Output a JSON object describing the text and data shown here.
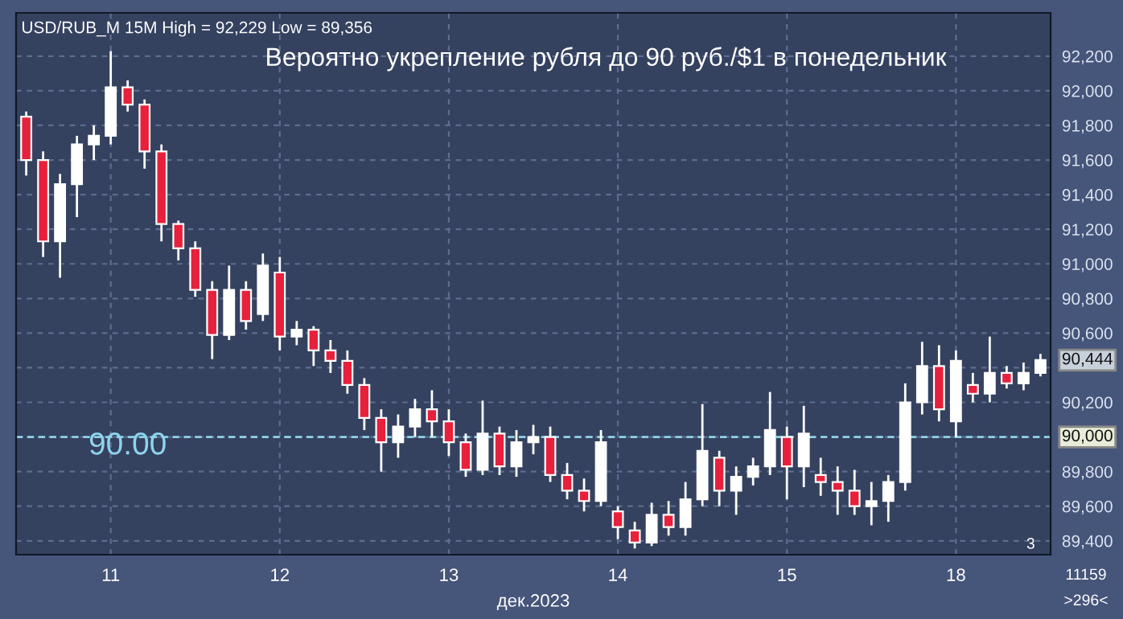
{
  "chart_data": {
    "type": "candlestick",
    "title": "Вероятно укрепление рубля до 90 руб./$1 в понедельник",
    "subtitle": "USD/RUB_M 15M High = 92,229 Low = 89,356",
    "xlabel": "дек.2023",
    "categories": [
      null,
      null,
      null,
      null,
      null,
      "11",
      null,
      null,
      null,
      null,
      null,
      null,
      null,
      null,
      null,
      "12",
      null,
      null,
      null,
      null,
      null,
      null,
      null,
      null,
      null,
      "13",
      null,
      null,
      null,
      null,
      null,
      null,
      null,
      null,
      null,
      "14",
      null,
      null,
      null,
      null,
      null,
      null,
      null,
      null,
      null,
      "15",
      null,
      null,
      null,
      null,
      null,
      null,
      null,
      null,
      null,
      "18",
      null,
      null,
      null,
      null,
      null
    ],
    "ohlc": [
      [
        91850,
        91880,
        91510,
        91600
      ],
      [
        91600,
        91650,
        91040,
        91130
      ],
      [
        91130,
        91520,
        90920,
        91460
      ],
      [
        91460,
        91740,
        91270,
        91690
      ],
      [
        91690,
        91800,
        91600,
        91740
      ],
      [
        91740,
        92229,
        91690,
        92020
      ],
      [
        92020,
        92060,
        91880,
        91920
      ],
      [
        91920,
        91950,
        91550,
        91650
      ],
      [
        91650,
        91690,
        91130,
        91230
      ],
      [
        91230,
        91250,
        91020,
        91090
      ],
      [
        91090,
        91130,
        90810,
        90850
      ],
      [
        90850,
        90900,
        90450,
        90590
      ],
      [
        90590,
        90990,
        90560,
        90850
      ],
      [
        90850,
        90900,
        90620,
        90670
      ],
      [
        90710,
        91060,
        90670,
        90990
      ],
      [
        90950,
        91040,
        90500,
        90580
      ],
      [
        90580,
        90670,
        90530,
        90620
      ],
      [
        90620,
        90640,
        90410,
        90500
      ],
      [
        90500,
        90560,
        90370,
        90440
      ],
      [
        90440,
        90500,
        90250,
        90300
      ],
      [
        90300,
        90340,
        90040,
        90110
      ],
      [
        90110,
        90160,
        89800,
        89970
      ],
      [
        89970,
        90130,
        89880,
        90060
      ],
      [
        90060,
        90220,
        90000,
        90160
      ],
      [
        90160,
        90270,
        90000,
        90090
      ],
      [
        90090,
        90160,
        89890,
        89970
      ],
      [
        89970,
        90020,
        89770,
        89810
      ],
      [
        89810,
        90210,
        89780,
        90020
      ],
      [
        90020,
        90060,
        89780,
        89830
      ],
      [
        89830,
        90040,
        89770,
        89970
      ],
      [
        89970,
        90070,
        89900,
        90000
      ],
      [
        90000,
        90060,
        89740,
        89780
      ],
      [
        89780,
        89850,
        89640,
        89690
      ],
      [
        89690,
        89760,
        89570,
        89630
      ],
      [
        89630,
        90040,
        89600,
        89970
      ],
      [
        89570,
        89600,
        89410,
        89480
      ],
      [
        89460,
        89510,
        89356,
        89390
      ],
      [
        89390,
        89620,
        89370,
        89550
      ],
      [
        89550,
        89630,
        89430,
        89480
      ],
      [
        89480,
        89740,
        89430,
        89640
      ],
      [
        89640,
        90190,
        89600,
        89920
      ],
      [
        89880,
        89920,
        89600,
        89690
      ],
      [
        89690,
        89830,
        89550,
        89770
      ],
      [
        89770,
        89880,
        89720,
        89830
      ],
      [
        89830,
        90260,
        89780,
        90040
      ],
      [
        90000,
        90060,
        89640,
        89830
      ],
      [
        89830,
        90180,
        89710,
        90020
      ],
      [
        89780,
        89880,
        89660,
        89740
      ],
      [
        89740,
        89830,
        89550,
        89690
      ],
      [
        89690,
        89810,
        89550,
        89600
      ],
      [
        89600,
        89740,
        89490,
        89630
      ],
      [
        89630,
        89780,
        89510,
        89740
      ],
      [
        89740,
        90310,
        89690,
        90200
      ],
      [
        90200,
        90550,
        90130,
        90410
      ],
      [
        90410,
        90530,
        90090,
        90160
      ],
      [
        90090,
        90500,
        90000,
        90440
      ],
      [
        90300,
        90370,
        90200,
        90250
      ],
      [
        90250,
        90580,
        90200,
        90370
      ],
      [
        90370,
        90410,
        90280,
        90310
      ],
      [
        90310,
        90430,
        90270,
        90370
      ],
      [
        90370,
        90480,
        90350,
        90444
      ]
    ],
    "colors": [
      "#e8203c",
      "#e8203c",
      "#ffffff",
      "#ffffff",
      "#ffffff",
      "#ffffff",
      "#e8203c",
      "#e8203c",
      "#e8203c",
      "#e8203c",
      "#e8203c",
      "#e8203c",
      "#ffffff",
      "#e8203c",
      "#ffffff",
      "#e8203c",
      "#ffffff",
      "#e8203c",
      "#e8203c",
      "#e8203c",
      "#e8203c",
      "#e8203c",
      "#ffffff",
      "#ffffff",
      "#e8203c",
      "#e8203c",
      "#e8203c",
      "#ffffff",
      "#e8203c",
      "#ffffff",
      "#ffffff",
      "#e8203c",
      "#e8203c",
      "#e8203c",
      "#ffffff",
      "#e8203c",
      "#e8203c",
      "#ffffff",
      "#e8203c",
      "#ffffff",
      "#ffffff",
      "#e8203c",
      "#ffffff",
      "#ffffff",
      "#ffffff",
      "#e8203c",
      "#ffffff",
      "#e8203c",
      "#e8203c",
      "#e8203c",
      "#ffffff",
      "#ffffff",
      "#ffffff",
      "#ffffff",
      "#e8203c",
      "#ffffff",
      "#e8203c",
      "#ffffff",
      "#e8203c",
      "#ffffff",
      "#ffffff"
    ],
    "ylim": [
      89320,
      92450
    ],
    "yticks": [
      {
        "value": 89400,
        "label": "89,400"
      },
      {
        "value": 89600,
        "label": "89,600"
      },
      {
        "value": 89800,
        "label": "89,800"
      },
      {
        "value": 90000,
        "label": "90,000"
      },
      {
        "value": 90200,
        "label": "90,200"
      },
      {
        "value": 90400,
        "label": null
      },
      {
        "value": 90600,
        "label": "90,600"
      },
      {
        "value": 90800,
        "label": "90,800"
      },
      {
        "value": 91000,
        "label": "91,000"
      },
      {
        "value": 91200,
        "label": "91,200"
      },
      {
        "value": 91400,
        "label": "91,400"
      },
      {
        "value": 91600,
        "label": "91,600"
      },
      {
        "value": 91800,
        "label": "91,800"
      },
      {
        "value": 92000,
        "label": "92,000"
      },
      {
        "value": 92200,
        "label": "92,200"
      }
    ],
    "ref_lines": [
      {
        "axis": "y",
        "value": 90000,
        "label": "90,000",
        "color": "#8fd3e6",
        "line_style": "dashed"
      }
    ],
    "annotations": [
      {
        "text": "90.00"
      },
      "90,444",
      {
        "text": "3"
      },
      {
        "text": "11159"
      },
      {
        "text": ">296<"
      }
    ],
    "grid": true
  }
}
